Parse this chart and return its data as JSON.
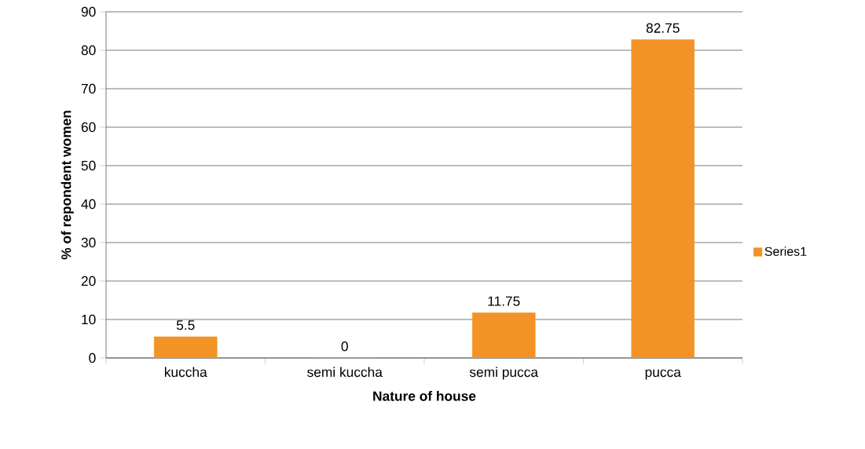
{
  "chart_data": {
    "type": "bar",
    "xlabel": "Nature of house",
    "ylabel": "% of repondent women",
    "categories": [
      "kuccha",
      "semi kuccha",
      "semi pucca",
      "pucca"
    ],
    "series": [
      {
        "name": "Series1",
        "color": "#f39325",
        "values": [
          5.5,
          0,
          11.75,
          82.75
        ]
      }
    ],
    "ylim": [
      0,
      90
    ],
    "yticks": [
      0,
      10,
      20,
      30,
      40,
      50,
      60,
      70,
      80,
      90
    ],
    "grid": "y",
    "legend": "right",
    "data_labels": true
  }
}
